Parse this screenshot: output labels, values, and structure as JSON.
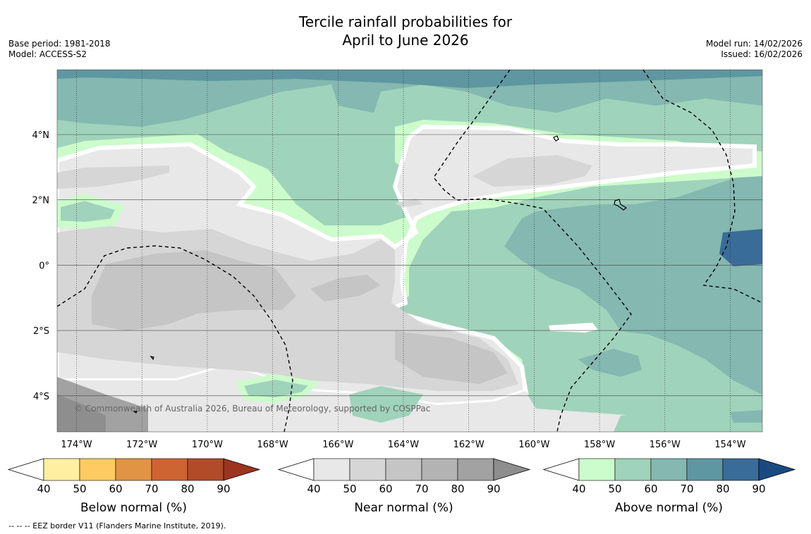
{
  "title_line1": "Tercile rainfall probabilities for",
  "title_line2": "April to June 2026",
  "base_period": "Base period: 1981-2018",
  "model": "Model: ACCESS-S2",
  "model_run": "Model run: 14/02/2026",
  "issued": "Issued: 16/02/2026",
  "copyright": "© Commonwealth of Australia 2026, Bureau of Meteorology, supported by COSPPac",
  "footer": "--  --  -- EEZ border V11 (Flanders Marine Institute, 2019).",
  "map": {
    "lon_labels": [
      "174°W",
      "172°W",
      "170°W",
      "168°W",
      "166°W",
      "164°W",
      "162°W",
      "160°W",
      "158°W",
      "156°W",
      "154°W"
    ],
    "lat_labels": [
      "4°N",
      "2°N",
      "0°",
      "2°S",
      "4°S"
    ]
  },
  "colorbars": [
    {
      "label": "Below normal (%)",
      "ticks": [
        "40",
        "50",
        "60",
        "70",
        "80",
        "90"
      ],
      "colors": [
        "#fef0a0",
        "#fecb63",
        "#e29445",
        "#cd6432",
        "#b14b28",
        "#9b3420"
      ]
    },
    {
      "label": "Near normal (%)",
      "ticks": [
        "40",
        "50",
        "60",
        "70",
        "80",
        "90"
      ],
      "colors": [
        "#e8e8e8",
        "#d6d6d6",
        "#c5c5c5",
        "#b3b3b3",
        "#a2a2a2",
        "#8e8e8e"
      ]
    },
    {
      "label": "Above normal (%)",
      "ticks": [
        "40",
        "50",
        "60",
        "70",
        "80",
        "90"
      ],
      "colors": [
        "#ccfccb",
        "#a0d3bb",
        "#84b8b0",
        "#5e97a1",
        "#3a6c99",
        "#1a4a80"
      ]
    }
  ]
}
